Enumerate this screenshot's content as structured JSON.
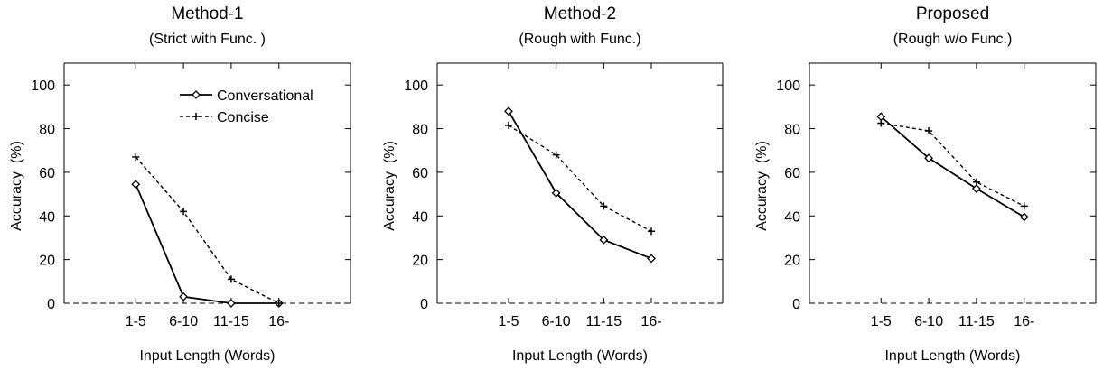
{
  "chart_data": [
    {
      "type": "line",
      "title": "Method-1",
      "subtitle": "(Strict with Func. )",
      "xlabel": "Input Length (Words)",
      "ylabel": "Accuracy  (%)",
      "categories": [
        "1-5",
        "6-10",
        "11-15",
        "16-"
      ],
      "ylim": [
        0,
        110
      ],
      "yticks": [
        0,
        20,
        40,
        60,
        80,
        100
      ],
      "series": [
        {
          "name": "Conversational",
          "values": [
            54.5,
            3,
            0,
            0
          ],
          "style": "solid",
          "marker": "diamond",
          "color": "#000000"
        },
        {
          "name": "Concise",
          "values": [
            67,
            42,
            11,
            0
          ],
          "style": "dashed",
          "marker": "plus",
          "color": "#000000"
        }
      ],
      "legend": "top-right",
      "grid": false
    },
    {
      "type": "line",
      "title": "Method-2",
      "subtitle": "(Rough with Func.)",
      "xlabel": "Input Length (Words)",
      "ylabel": "Accuracy  (%)",
      "categories": [
        "1-5",
        "6-10",
        "11-15",
        "16-"
      ],
      "ylim": [
        0,
        110
      ],
      "yticks": [
        0,
        20,
        40,
        60,
        80,
        100
      ],
      "series": [
        {
          "name": "Conversational",
          "values": [
            88,
            50.5,
            29,
            20.5
          ],
          "style": "solid",
          "marker": "diamond",
          "color": "#000000"
        },
        {
          "name": "Concise",
          "values": [
            81.5,
            68,
            44.5,
            33
          ],
          "style": "dashed",
          "marker": "plus",
          "color": "#000000"
        }
      ],
      "grid": false
    },
    {
      "type": "line",
      "title": "Proposed",
      "subtitle": "(Rough w/o Func.)",
      "xlabel": "Input Length (Words)",
      "ylabel": "Accuracy  (%)",
      "categories": [
        "1-5",
        "6-10",
        "11-15",
        "16-"
      ],
      "ylim": [
        0,
        110
      ],
      "yticks": [
        0,
        20,
        40,
        60,
        80,
        100
      ],
      "series": [
        {
          "name": "Conversational",
          "values": [
            85.5,
            66.5,
            52.5,
            39.5
          ],
          "style": "solid",
          "marker": "diamond",
          "color": "#000000"
        },
        {
          "name": "Concise",
          "values": [
            82.5,
            79,
            55.5,
            44.5
          ],
          "style": "dashed",
          "marker": "plus",
          "color": "#000000"
        }
      ],
      "grid": false
    }
  ]
}
